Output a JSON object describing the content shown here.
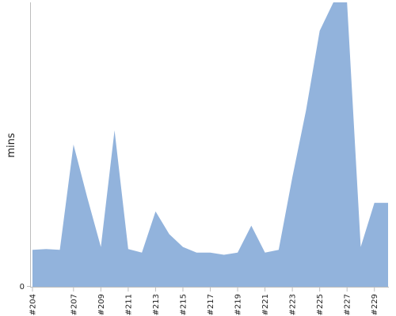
{
  "chart_data": {
    "type": "area",
    "ylabel": "mins",
    "y_ticks": [
      {
        "value": 0,
        "label": "0"
      }
    ],
    "ylim": [
      0,
      200
    ],
    "color": "#92b3dc",
    "x": [
      "#204",
      "#205",
      "#206",
      "#207",
      "#208",
      "#209",
      "#210",
      "#211",
      "#212",
      "#213",
      "#214",
      "#215",
      "#216",
      "#217",
      "#218",
      "#219",
      "#220",
      "#221",
      "#222",
      "#223",
      "#224",
      "#225",
      "#226",
      "#227",
      "#228",
      "#229",
      "#230"
    ],
    "x_tick_labels": [
      "#204",
      "#207",
      "#209",
      "#211",
      "#213",
      "#215",
      "#217",
      "#219",
      "#221",
      "#223",
      "#225",
      "#227",
      "#229"
    ],
    "values": [
      26,
      26.5,
      26,
      100,
      63,
      28,
      110,
      26.5,
      24,
      53,
      37,
      28,
      24,
      24,
      22.5,
      24,
      43,
      24,
      26,
      77,
      124,
      180,
      200,
      200,
      28,
      59,
      59
    ]
  }
}
